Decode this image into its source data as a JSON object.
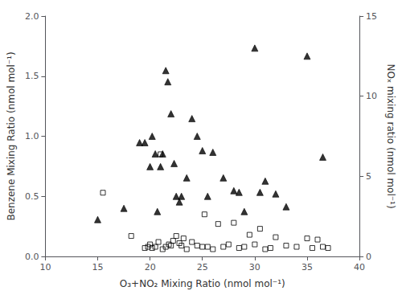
{
  "chart_data": {
    "type": "scatter",
    "xlabel": "O₃+NO₂ Mixing Ratio (nmol mol⁻¹)",
    "ylabel": "Benzene Mixing Ratio (nmol mol⁻¹)",
    "y2label": "NOₓ mixing ratio (nmol mol⁻¹)",
    "xlim": [
      10,
      40
    ],
    "xticks": [
      10,
      15,
      20,
      25,
      30,
      35,
      40
    ],
    "ylim": [
      0.0,
      2.0
    ],
    "yticks": [
      {
        "value": 0,
        "label": "0.0"
      },
      0.5,
      {
        "value": 1,
        "label": "1.0"
      },
      1.5,
      {
        "value": 2,
        "label": "2.0"
      }
    ],
    "y2lim": [
      0,
      15
    ],
    "y2ticks": [
      0,
      5,
      10,
      15
    ],
    "grid": false,
    "series": [
      {
        "marker": "open-square",
        "color": "black",
        "x": [
          15.5,
          18.2,
          19.5,
          19.8,
          20.0,
          20.2,
          20.5,
          20.8,
          21.0,
          21.2,
          21.5,
          21.8,
          22.0,
          22.2,
          22.5,
          22.8,
          23.0,
          23.2,
          23.5,
          24.0,
          24.5,
          25.0,
          25.2,
          25.5,
          26.0,
          26.5,
          27.0,
          27.5,
          28.0,
          28.5,
          29.0,
          29.5,
          30.0,
          30.5,
          31.0,
          31.5,
          32.0,
          33.0,
          34.0,
          35.0,
          35.5,
          36.0,
          36.5,
          37.0
        ],
        "values": [
          0.53,
          0.17,
          0.07,
          0.08,
          0.1,
          0.07,
          0.08,
          0.12,
          0.85,
          0.06,
          0.08,
          0.1,
          0.09,
          0.13,
          0.17,
          0.11,
          0.09,
          0.15,
          0.06,
          0.12,
          0.09,
          0.08,
          0.35,
          0.08,
          0.06,
          0.27,
          0.08,
          0.1,
          0.28,
          0.07,
          0.08,
          0.18,
          0.1,
          0.23,
          0.06,
          0.07,
          0.16,
          0.09,
          0.08,
          0.15,
          0.07,
          0.14,
          0.08,
          0.07
        ]
      },
      {
        "marker": "triangle",
        "color": "black",
        "axis": "y2",
        "x": [
          15.0,
          17.5,
          19.0,
          19.5,
          20.0,
          20.2,
          20.5,
          20.7,
          21.0,
          21.2,
          21.5,
          21.7,
          22.0,
          22.3,
          22.5,
          22.8,
          23.0,
          23.5,
          24.0,
          24.5,
          25.0,
          25.5,
          26.0,
          27.0,
          28.0,
          28.5,
          29.0,
          30.0,
          30.5,
          31.0,
          32.0,
          33.0,
          35.0,
          36.5
        ],
        "values": [
          2.3,
          3.0,
          7.1,
          7.1,
          5.6,
          7.5,
          6.4,
          2.8,
          5.6,
          6.4,
          11.6,
          10.9,
          8.9,
          5.8,
          3.75,
          3.4,
          3.75,
          4.9,
          8.6,
          7.5,
          6.6,
          3.75,
          6.5,
          4.9,
          4.1,
          4.0,
          2.8,
          13.0,
          4.0,
          4.7,
          3.9,
          3.1,
          12.5,
          6.2
        ]
      }
    ]
  }
}
